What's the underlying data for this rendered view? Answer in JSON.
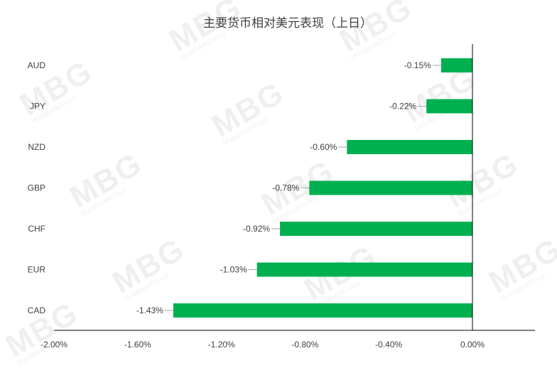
{
  "chart_data": {
    "type": "bar",
    "orientation": "horizontal",
    "title": "主要货币相对美元表现（上日）",
    "categories": [
      "AUD",
      "JPY",
      "NZD",
      "GBP",
      "CHF",
      "EUR",
      "CAD"
    ],
    "values": [
      -0.15,
      -0.22,
      -0.6,
      -0.78,
      -0.92,
      -1.03,
      -1.43
    ],
    "data_labels": [
      "-0.15%",
      "-0.22%",
      "-0.60%",
      "-0.78%",
      "-0.92%",
      "-1.03%",
      "-1.43%"
    ],
    "xticks": [
      -2.0,
      -1.6,
      -1.2,
      -0.8,
      -0.4,
      0.0
    ],
    "xtick_labels": [
      "-2.00%",
      "-1.60%",
      "-1.20%",
      "-0.80%",
      "-0.40%",
      "0.00%"
    ],
    "xlim": [
      -2.0,
      0.3
    ],
    "grid": false,
    "bar_color": "#00b050"
  },
  "watermark": {
    "text": "MBG",
    "subtext": "MultiBankGroup"
  }
}
